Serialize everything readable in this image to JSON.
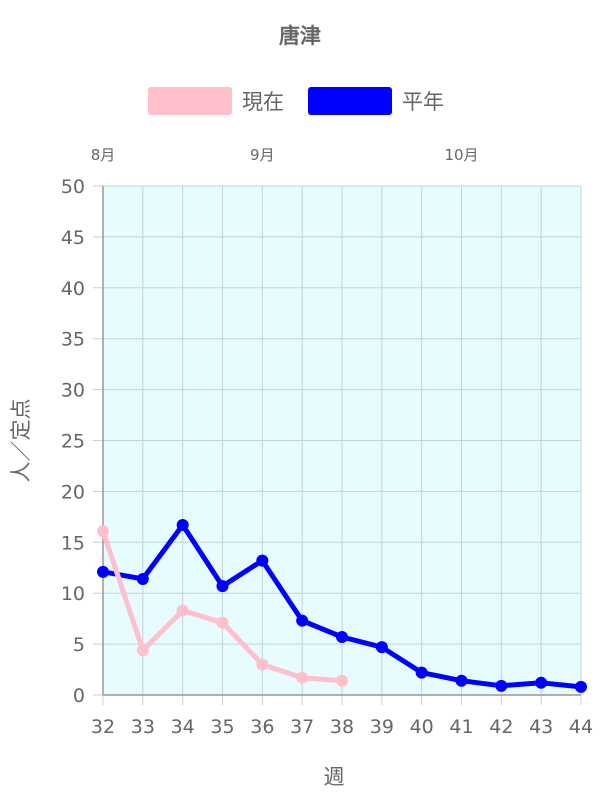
{
  "chart_data": {
    "type": "line",
    "title": "唐津",
    "xlabel": "週",
    "ylabel": "人／定点",
    "x": [
      32,
      33,
      34,
      35,
      36,
      37,
      38,
      39,
      40,
      41,
      42,
      43,
      44
    ],
    "ylim": [
      0,
      50
    ],
    "yticks": [
      0,
      5,
      10,
      15,
      20,
      25,
      30,
      35,
      40,
      45,
      50
    ],
    "month_labels": [
      {
        "label": "8月",
        "week": 32
      },
      {
        "label": "9月",
        "week": 36
      },
      {
        "label": "10月",
        "week": 41
      }
    ],
    "series": [
      {
        "name": "現在",
        "color": "#ffc0cb",
        "x": [
          32,
          33,
          34,
          35,
          36,
          37,
          38
        ],
        "values": [
          16.1,
          4.4,
          8.3,
          7.1,
          3.0,
          1.7,
          1.4
        ]
      },
      {
        "name": "平年",
        "color": "#0000ff",
        "x": [
          32,
          33,
          34,
          35,
          36,
          37,
          38,
          39,
          40,
          41,
          42,
          43,
          44
        ],
        "values": [
          12.1,
          11.4,
          16.7,
          10.7,
          13.2,
          7.3,
          5.7,
          4.7,
          2.2,
          1.4,
          0.9,
          1.2,
          0.8
        ]
      }
    ],
    "plot_background": "#e6fcff",
    "grid": true,
    "legend_position": "top"
  }
}
